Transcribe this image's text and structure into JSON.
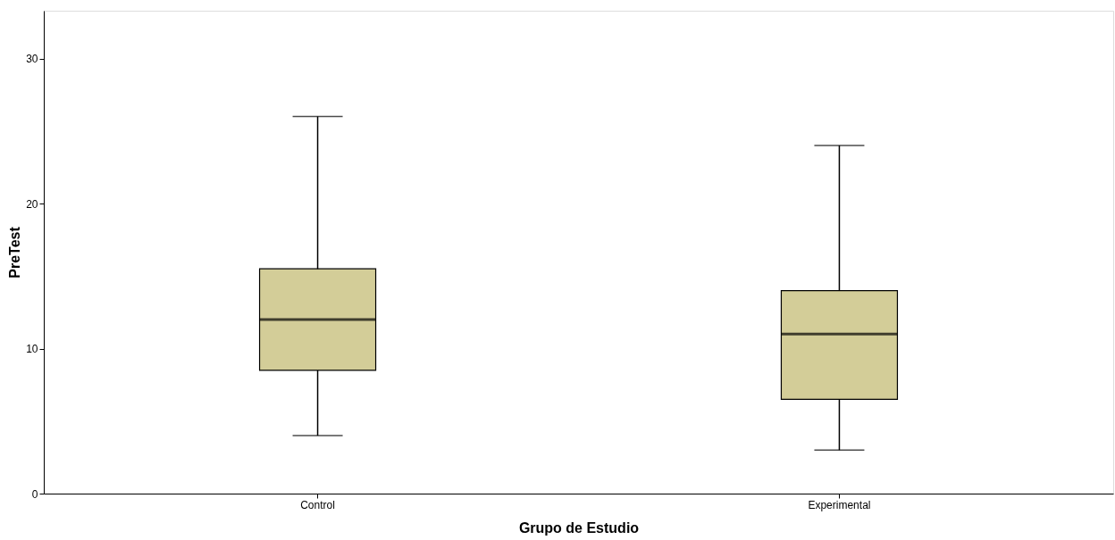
{
  "chart_data": {
    "type": "box",
    "xlabel": "Grupo de Estudio",
    "ylabel": "PreTest",
    "categories": [
      "Control",
      "Experimental"
    ],
    "boxes": [
      {
        "low": 4,
        "q1": 8.5,
        "median": 12,
        "q3": 15.5,
        "high": 26
      },
      {
        "low": 3,
        "q1": 6.5,
        "median": 11,
        "q3": 14,
        "high": 24
      }
    ],
    "color": "#d3cd98",
    "ylim": [
      0,
      33.3
    ],
    "yticks": [
      0,
      10,
      20,
      30
    ],
    "grid": false
  }
}
